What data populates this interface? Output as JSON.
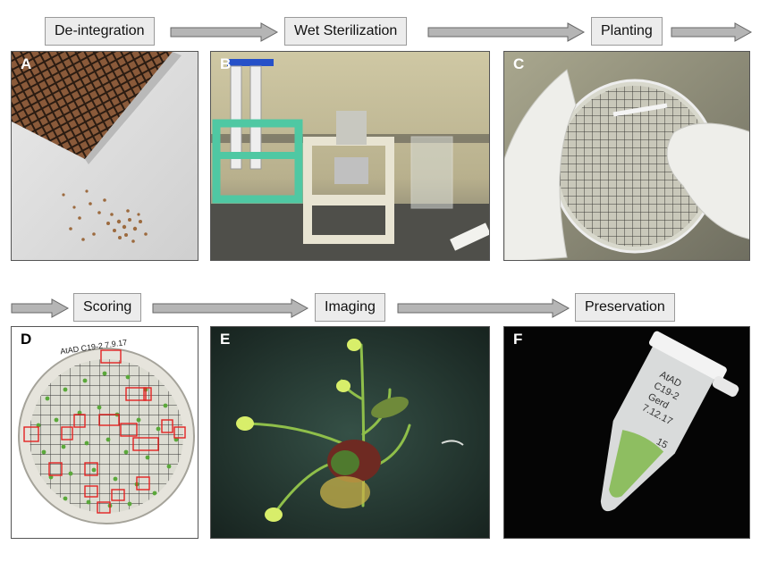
{
  "stages": [
    "De-integration",
    "Wet Sterilization",
    "Planting",
    "Scoring",
    "Imaging",
    "Preservation"
  ],
  "panels": [
    {
      "label": "A",
      "subject": "seed-tray"
    },
    {
      "label": "B",
      "subject": "sterilization-racks"
    },
    {
      "label": "C",
      "subject": "gloved-petri-dish"
    },
    {
      "label": "D",
      "subject": "scored-petri-plate"
    },
    {
      "label": "E",
      "subject": "seedling-plant"
    },
    {
      "label": "F",
      "subject": "microcentrifuge-tube"
    }
  ],
  "annotations": {
    "plate_text": "AtAD C19-2 7.9.17",
    "tube_text": [
      "AtAD",
      "C19-2",
      "Gerd",
      "7.12.17",
      "15"
    ]
  },
  "colors": {
    "stage_fill": "#ececec",
    "stage_border": "#9a9a9a",
    "arrow_fill": "#b5b5b5",
    "score_marker": "#e32222",
    "rack_green": "#4fc8a3"
  }
}
